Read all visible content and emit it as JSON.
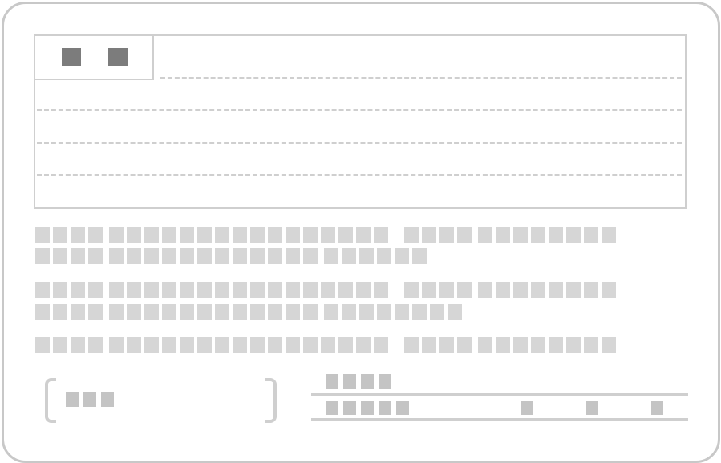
{
  "card": {
    "upper_panel": {
      "marker_count": 2,
      "dashed_lines": 4
    },
    "text_rows": [
      {
        "blocks": [
          4,
          16,
          0,
          4,
          8
        ]
      },
      {
        "blocks": [
          4,
          12,
          6
        ]
      },
      {
        "blocks": [
          4,
          16,
          0,
          4,
          8
        ]
      },
      {
        "blocks": [
          4,
          12,
          8
        ]
      },
      {
        "blocks": [
          4,
          16,
          0,
          4,
          8
        ]
      }
    ],
    "left_field": {
      "blocks": 3
    },
    "right_fields": {
      "top_blocks": 4,
      "bottom_blocks": 5,
      "trailing_blocks": 3
    }
  },
  "colors": {
    "border": "#c8c8c8",
    "placeholder": "#d6d6d6",
    "marker": "#7c7c7c"
  }
}
